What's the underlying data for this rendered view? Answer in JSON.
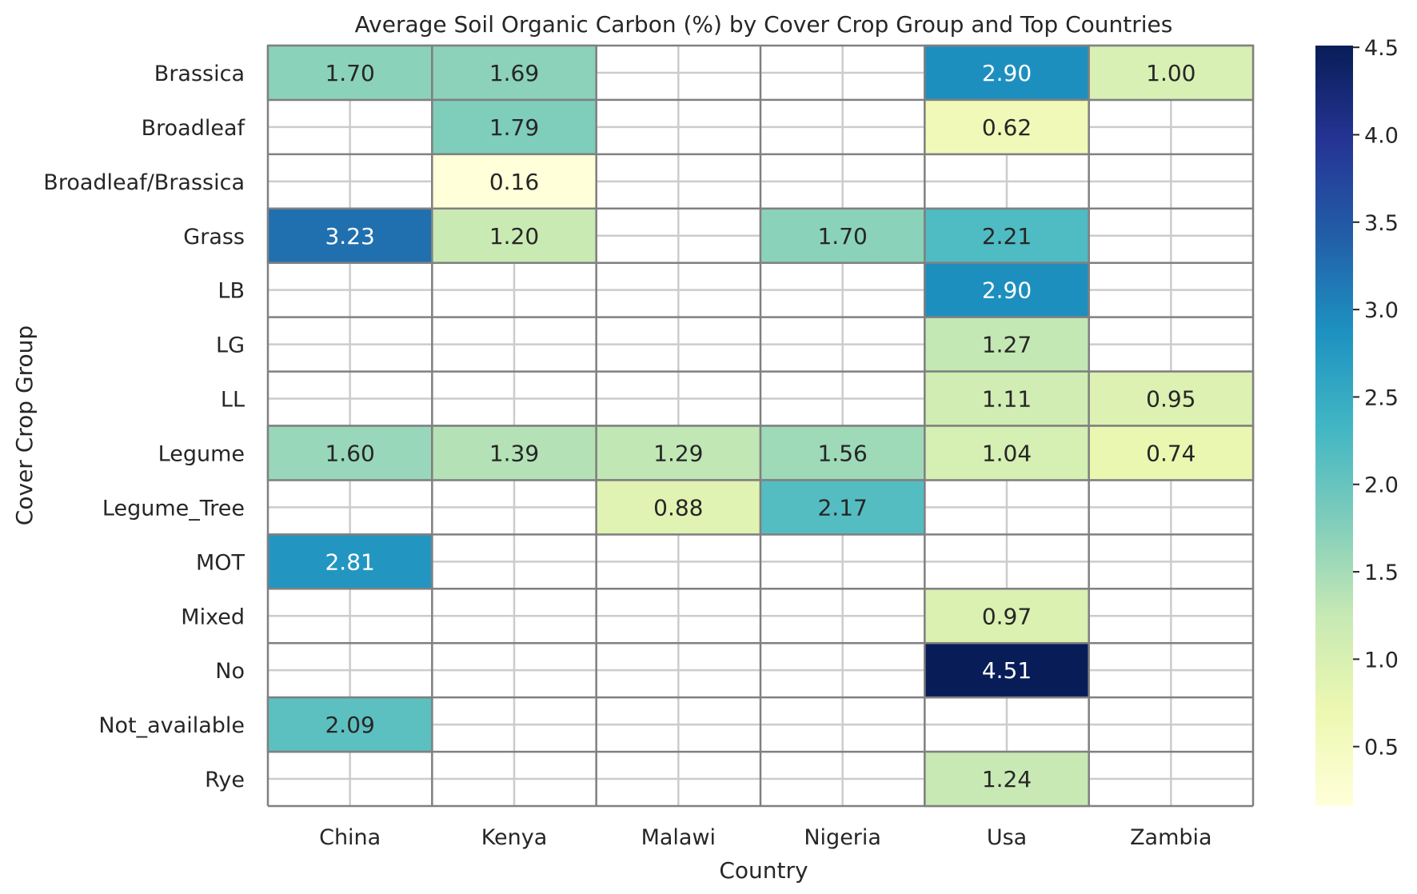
{
  "chart_data": {
    "type": "heatmap",
    "title": "Average Soil Organic Carbon (%) by Cover Crop Group and Top Countries",
    "xlabel": "Country",
    "ylabel": "Cover Crop Group",
    "x": [
      "China",
      "Kenya",
      "Malawi",
      "Nigeria",
      "Usa",
      "Zambia"
    ],
    "y": [
      "Brassica",
      "Broadleaf",
      "Broadleaf/Brassica",
      "Grass",
      "LB",
      "LG",
      "LL",
      "Legume",
      "Legume_Tree",
      "MOT",
      "Mixed",
      "No",
      "Not_available",
      "Rye"
    ],
    "values": [
      [
        1.7,
        1.69,
        null,
        null,
        2.9,
        1.0
      ],
      [
        null,
        1.79,
        null,
        null,
        0.62,
        null
      ],
      [
        null,
        0.16,
        null,
        null,
        null,
        null
      ],
      [
        3.23,
        1.2,
        null,
        1.7,
        2.21,
        null
      ],
      [
        null,
        null,
        null,
        null,
        2.9,
        null
      ],
      [
        null,
        null,
        null,
        null,
        1.27,
        null
      ],
      [
        null,
        null,
        null,
        null,
        1.11,
        0.95
      ],
      [
        1.6,
        1.39,
        1.29,
        1.56,
        1.04,
        0.74
      ],
      [
        null,
        null,
        0.88,
        2.17,
        null,
        null
      ],
      [
        2.81,
        null,
        null,
        null,
        null,
        null
      ],
      [
        null,
        null,
        null,
        null,
        0.97,
        null
      ],
      [
        null,
        null,
        null,
        null,
        4.51,
        null
      ],
      [
        2.09,
        null,
        null,
        null,
        null,
        null
      ],
      [
        null,
        null,
        null,
        null,
        1.24,
        null
      ]
    ],
    "value_format": "0.00",
    "colormap": "YlGnBu",
    "colorbar": {
      "range": [
        0.16,
        4.51
      ],
      "ticks": [
        "0.5",
        "1.0",
        "1.5",
        "2.0",
        "2.5",
        "3.0",
        "3.5",
        "4.0",
        "4.5"
      ],
      "placement": "right"
    },
    "grid": true,
    "cell_border_color": "#808080",
    "grid_line_color": "#cccccc"
  }
}
